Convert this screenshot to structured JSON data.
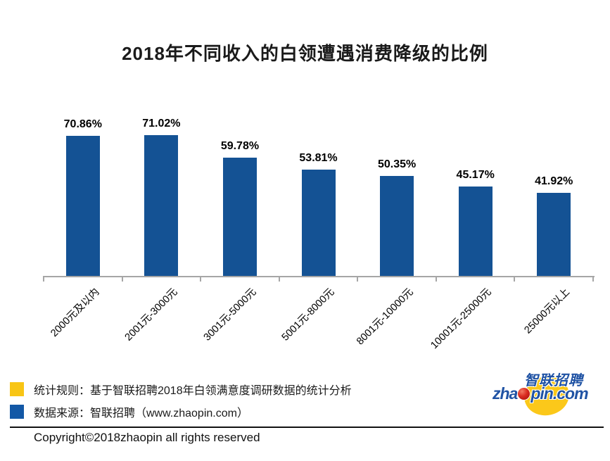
{
  "title": "2018年不同收入的白领遭遇消费降级的比例",
  "chart_data": {
    "type": "bar",
    "title": "2018年不同收入的白领遭遇消费降级的比例",
    "categories": [
      "2000元及以内",
      "2001元-3000元",
      "3001元-5000元",
      "5001元-8000元",
      "8001元-10000元",
      "10001元-25000元",
      "25000元以上"
    ],
    "values": [
      70.86,
      71.02,
      59.78,
      53.81,
      50.35,
      45.17,
      41.92
    ],
    "value_labels": [
      "70.86%",
      "71.02%",
      "59.78%",
      "53.81%",
      "50.35%",
      "45.17%",
      "41.92%"
    ],
    "xlabel": "",
    "ylabel": "",
    "ylim": [
      0,
      80
    ],
    "grid": false,
    "legend_position": "none",
    "bar_color": "#145294",
    "axis_color": "#A6A6A6"
  },
  "legend": {
    "items": [
      {
        "swatch_color": "#F8C515",
        "label": "统计规则：基于智联招聘2018年白领满意度调研数据的统计分析"
      },
      {
        "swatch_color": "#1358A6",
        "label": "数据来源：智联招聘（www.zhaopin.com）"
      }
    ]
  },
  "footer": {
    "copyright": "Copyright©2018zhaopin all rights reserved"
  },
  "logo": {
    "cn_text": "智联招聘",
    "domain_prefix": "zha",
    "domain_suffix": "pin.com",
    "yellow": "#FBC81A",
    "blue": "#2053A4",
    "red": "#C8171E"
  }
}
